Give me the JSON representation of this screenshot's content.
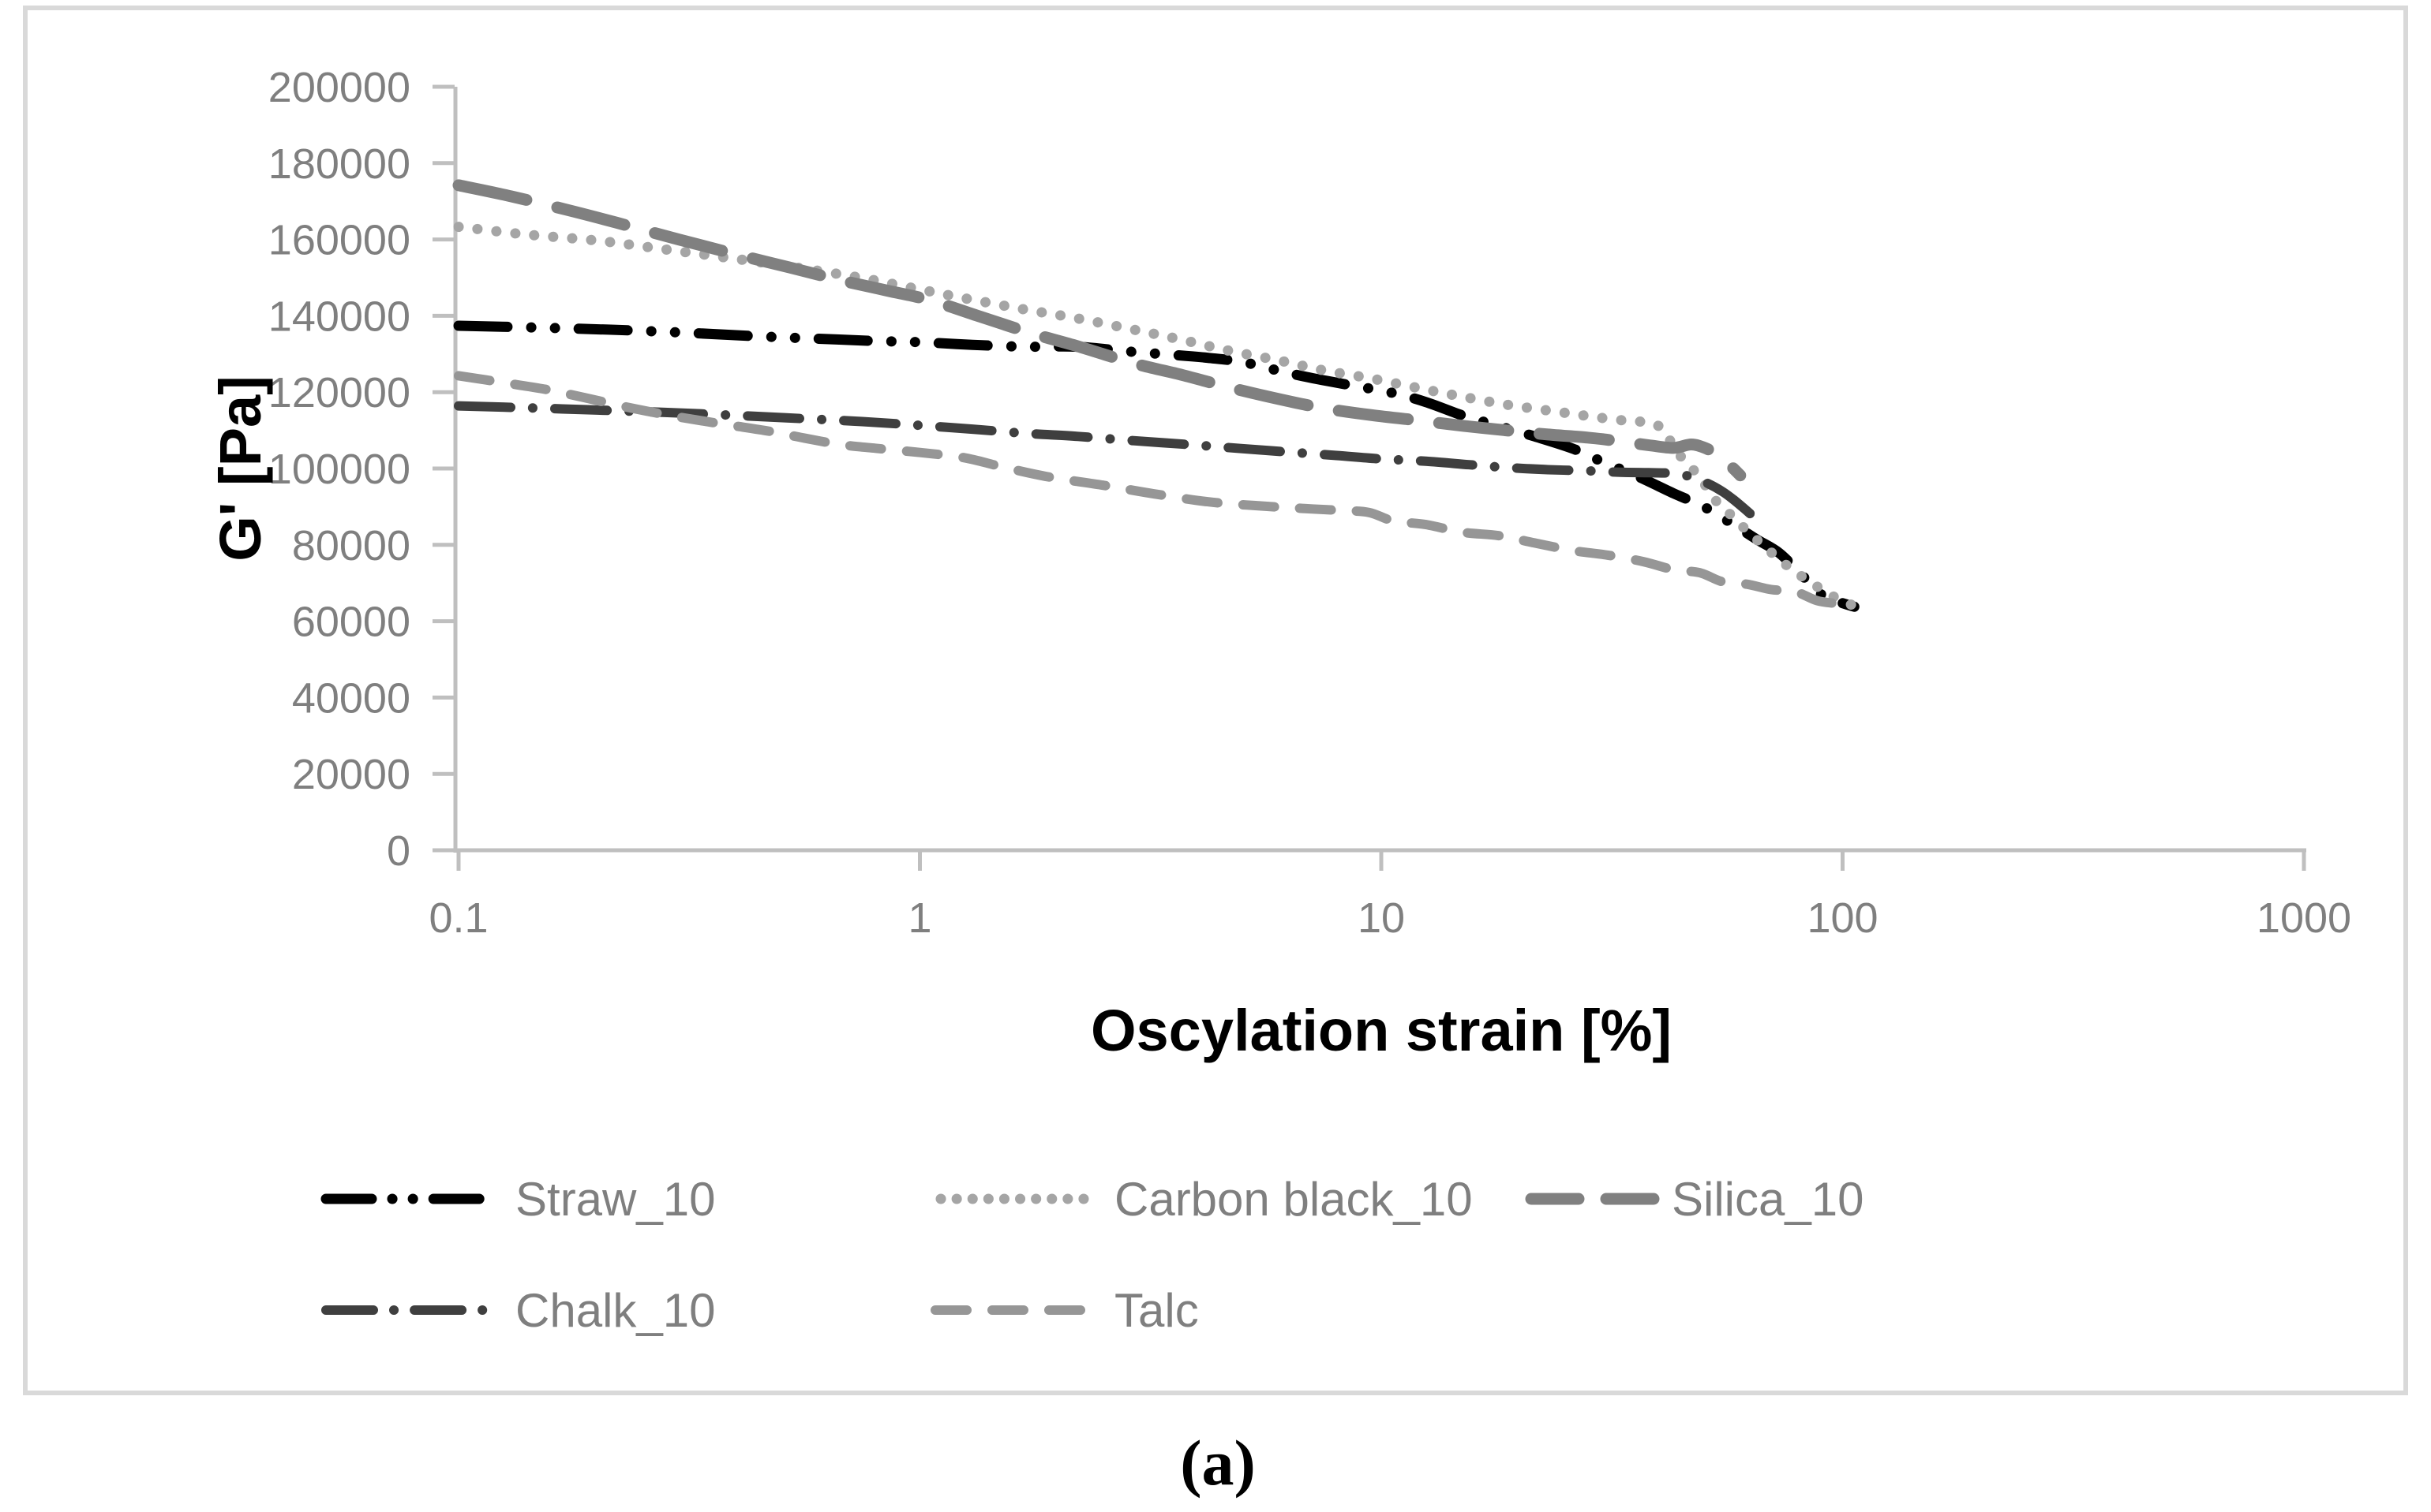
{
  "figure": {
    "caption": "(a)"
  },
  "chart_data": {
    "type": "line",
    "title": "",
    "xlabel": "Oscylation strain [%]",
    "ylabel": "G' [Pa]",
    "grid": false,
    "legend_position": "bottom",
    "x_axis": {
      "scale": "log",
      "min": 0.1,
      "max": 1000,
      "ticks": [
        0.1,
        1,
        10,
        100,
        1000
      ],
      "tick_labels": [
        "0.1",
        "1",
        "10",
        "100",
        "1000"
      ]
    },
    "y_axis": {
      "scale": "linear",
      "min": 0,
      "max": 200000,
      "ticks": [
        0,
        20000,
        40000,
        60000,
        80000,
        100000,
        120000,
        140000,
        160000,
        180000,
        200000
      ],
      "tick_labels": [
        "0",
        "20000",
        "40000",
        "60000",
        "80000",
        "100000",
        "120000",
        "140000",
        "160000",
        "180000",
        "200000"
      ]
    },
    "series": [
      {
        "name": "Straw_10",
        "color": "#000000",
        "line_style": "dash-dot-dot",
        "stroke_width": 13,
        "dash": "62 30 0.1 30 0.1 30",
        "legend_dash": "58 26 0.1 26 0.1 26",
        "points": [
          [
            0.1,
            137400
          ],
          [
            0.15,
            136900
          ],
          [
            0.22,
            136300
          ],
          [
            0.32,
            135500
          ],
          [
            0.45,
            134600
          ],
          [
            0.6,
            134000
          ],
          [
            0.8,
            133400
          ],
          [
            1.0,
            133100
          ],
          [
            1.3,
            132400
          ],
          [
            1.7,
            131900
          ],
          [
            2.2,
            131900
          ],
          [
            2.8,
            130700
          ],
          [
            3.5,
            129800
          ],
          [
            4.2,
            129000
          ],
          [
            5.0,
            127900
          ],
          [
            6.0,
            125600
          ],
          [
            7.0,
            123800
          ],
          [
            8.5,
            121900
          ],
          [
            10.5,
            119900
          ],
          [
            12.5,
            117400
          ],
          [
            15,
            113900
          ],
          [
            18,
            111100
          ],
          [
            21.5,
            108400
          ],
          [
            26,
            105200
          ],
          [
            30,
            101900
          ],
          [
            36,
            97900
          ],
          [
            43,
            93500
          ],
          [
            50,
            90000
          ],
          [
            57,
            85900
          ],
          [
            65,
            81500
          ],
          [
            73,
            77800
          ],
          [
            82,
            71800
          ],
          [
            91,
            66500
          ],
          [
            99,
            64900
          ],
          [
            106,
            63800
          ]
        ]
      },
      {
        "name": "Carbon black_10",
        "color": "#a5a5a5",
        "line_style": "dotted",
        "stroke_width": 13,
        "dash": "0.1 24",
        "legend_dash": "0.1 20",
        "points": [
          [
            0.1,
            163300
          ],
          [
            0.14,
            161300
          ],
          [
            0.2,
            159700
          ],
          [
            0.28,
            157400
          ],
          [
            0.4,
            154900
          ],
          [
            0.55,
            152500
          ],
          [
            0.75,
            149900
          ],
          [
            1.0,
            146900
          ],
          [
            1.3,
            144200
          ],
          [
            1.7,
            141600
          ],
          [
            2.2,
            139300
          ],
          [
            2.9,
            136400
          ],
          [
            3.7,
            133700
          ],
          [
            4.7,
            130800
          ],
          [
            6,
            128300
          ],
          [
            7.5,
            125700
          ],
          [
            9.5,
            123600
          ],
          [
            12,
            121100
          ],
          [
            15,
            118800
          ],
          [
            19,
            116600
          ],
          [
            24,
            114900
          ],
          [
            29,
            113500
          ],
          [
            34,
            112500
          ],
          [
            39,
            111800
          ],
          [
            41.5,
            108700
          ],
          [
            44,
            104000
          ],
          [
            47,
            100300
          ],
          [
            50,
            96200
          ],
          [
            54,
            90500
          ],
          [
            58,
            87300
          ],
          [
            62,
            83700
          ],
          [
            67,
            80100
          ],
          [
            72,
            76800
          ],
          [
            78,
            73400
          ],
          [
            85,
            70300
          ],
          [
            92,
            67600
          ],
          [
            99,
            65500
          ],
          [
            106,
            64000
          ]
        ]
      },
      {
        "name": "Silica_10",
        "color": "#808080",
        "line_style": "long-dash",
        "stroke_width": 15,
        "dash": "88 40",
        "legend_dash": "60 35",
        "points": [
          [
            0.1,
            174200
          ],
          [
            0.13,
            171300
          ],
          [
            0.17,
            167900
          ],
          [
            0.22,
            164400
          ],
          [
            0.3,
            160000
          ],
          [
            0.4,
            156100
          ],
          [
            0.52,
            152700
          ],
          [
            0.68,
            149200
          ],
          [
            0.85,
            146600
          ],
          [
            1.05,
            144100
          ],
          [
            1.35,
            139800
          ],
          [
            1.75,
            135400
          ],
          [
            2.2,
            132000
          ],
          [
            2.9,
            127600
          ],
          [
            3.7,
            124500
          ],
          [
            4.7,
            121200
          ],
          [
            6,
            118200
          ],
          [
            7.5,
            115800
          ],
          [
            9.5,
            114000
          ],
          [
            12,
            112600
          ],
          [
            15,
            111200
          ],
          [
            19,
            109900
          ],
          [
            23,
            108900
          ],
          [
            28,
            108100
          ],
          [
            33,
            107100
          ],
          [
            38,
            106100
          ],
          [
            43,
            105400
          ],
          [
            47,
            106300
          ],
          [
            50.5,
            105300
          ],
          [
            53.5,
            103500
          ],
          [
            56.5,
            101300
          ],
          [
            60,
            98200
          ]
        ]
      },
      {
        "name": "Chalk_10",
        "color": "#3f3f3f",
        "line_style": "dash-dot",
        "stroke_width": 12,
        "dash": "66 28 0.1 28",
        "legend_dash": "60 26 0.1 26",
        "points": [
          [
            0.1,
            116400
          ],
          [
            0.14,
            115900
          ],
          [
            0.2,
            115300
          ],
          [
            0.28,
            114700
          ],
          [
            0.4,
            113900
          ],
          [
            0.55,
            113100
          ],
          [
            0.75,
            112300
          ],
          [
            1.0,
            111300
          ],
          [
            1.3,
            110300
          ],
          [
            1.7,
            109200
          ],
          [
            2.2,
            108400
          ],
          [
            2.9,
            107300
          ],
          [
            3.8,
            106300
          ],
          [
            5,
            105200
          ],
          [
            6.3,
            104300
          ],
          [
            8,
            103400
          ],
          [
            10,
            102500
          ],
          [
            12.5,
            101900
          ],
          [
            15.5,
            101000
          ],
          [
            19,
            100200
          ],
          [
            23,
            99700
          ],
          [
            28,
            99400
          ],
          [
            33,
            99000
          ],
          [
            38,
            98900
          ],
          [
            43,
            98700
          ],
          [
            47,
            97800
          ],
          [
            51,
            96100
          ],
          [
            55,
            93900
          ],
          [
            58.5,
            91500
          ],
          [
            61.5,
            89300
          ],
          [
            63.5,
            87800
          ]
        ]
      },
      {
        "name": "Talc",
        "color": "#969696",
        "line_style": "dashed",
        "stroke_width": 12,
        "dash": "40 32",
        "legend_dash": "40 32",
        "points": [
          [
            0.1,
            124300
          ],
          [
            0.125,
            122500
          ],
          [
            0.155,
            120700
          ],
          [
            0.19,
            118400
          ],
          [
            0.24,
            115700
          ],
          [
            0.3,
            113500
          ],
          [
            0.38,
            111500
          ],
          [
            0.47,
            109800
          ],
          [
            0.56,
            108000
          ],
          [
            0.67,
            106300
          ],
          [
            0.8,
            105300
          ],
          [
            1.0,
            104200
          ],
          [
            1.25,
            102800
          ],
          [
            1.5,
            100500
          ],
          [
            1.9,
            97800
          ],
          [
            2.5,
            95600
          ],
          [
            3.2,
            93400
          ],
          [
            4.2,
            91300
          ],
          [
            5.3,
            90300
          ],
          [
            6.6,
            89600
          ],
          [
            8.2,
            89000
          ],
          [
            9.4,
            88500
          ],
          [
            10.6,
            86300
          ],
          [
            12.5,
            85300
          ],
          [
            15,
            83300
          ],
          [
            18,
            82400
          ],
          [
            21.5,
            80500
          ],
          [
            26,
            78500
          ],
          [
            31,
            77300
          ],
          [
            37,
            75600
          ],
          [
            43,
            73500
          ],
          [
            49,
            72700
          ],
          [
            55,
            70300
          ],
          [
            62,
            69700
          ],
          [
            70,
            68300
          ],
          [
            79,
            67700
          ],
          [
            88,
            65400
          ],
          [
            97,
            64600
          ],
          [
            105,
            63900
          ]
        ]
      }
    ],
    "colors": {
      "axis_line": "#bfbfbf",
      "frame_border": "#d9d9d9",
      "tick_text": "#7f7f7f",
      "legend_text": "#7f7f7f",
      "title_text": "#000000"
    }
  }
}
